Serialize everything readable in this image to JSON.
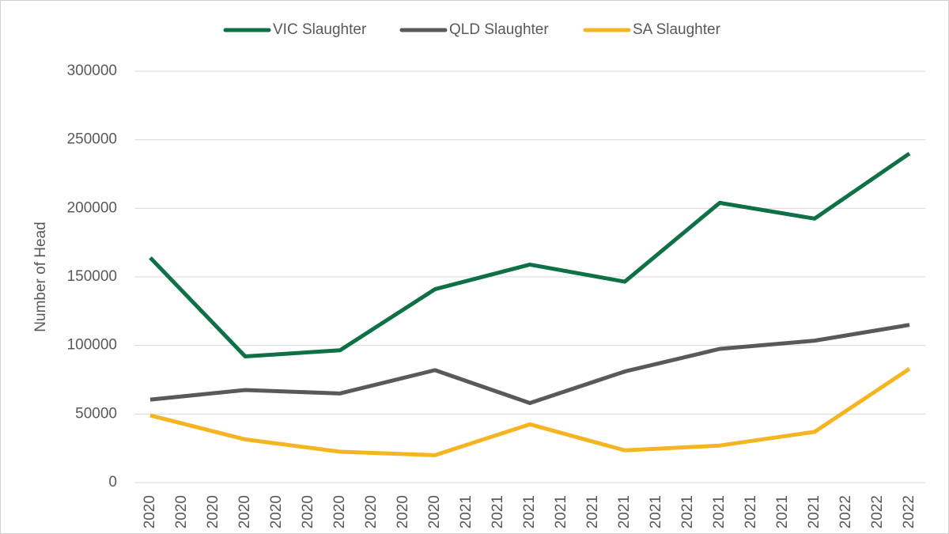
{
  "chart_data": {
    "type": "line",
    "y_label": "Number of Head",
    "xlim": [
      -0.5,
      24.5
    ],
    "xticks": [
      {
        "value": 0,
        "label": "2020"
      },
      {
        "value": 1,
        "label": "2020"
      },
      {
        "value": 2,
        "label": "2020"
      },
      {
        "value": 3,
        "label": "2020"
      },
      {
        "value": 4,
        "label": "2020"
      },
      {
        "value": 5,
        "label": "2020"
      },
      {
        "value": 6,
        "label": "2020"
      },
      {
        "value": 7,
        "label": "2020"
      },
      {
        "value": 8,
        "label": "2020"
      },
      {
        "value": 9,
        "label": "2020"
      },
      {
        "value": 10,
        "label": "2021"
      },
      {
        "value": 11,
        "label": "2021"
      },
      {
        "value": 12,
        "label": "2021"
      },
      {
        "value": 13,
        "label": "2021"
      },
      {
        "value": 14,
        "label": "2021"
      },
      {
        "value": 15,
        "label": "2021"
      },
      {
        "value": 16,
        "label": "2021"
      },
      {
        "value": 17,
        "label": "2021"
      },
      {
        "value": 18,
        "label": "2021"
      },
      {
        "value": 19,
        "label": "2021"
      },
      {
        "value": 20,
        "label": "2021"
      },
      {
        "value": 21,
        "label": "2021"
      },
      {
        "value": 22,
        "label": "2022"
      },
      {
        "value": 23,
        "label": "2022"
      },
      {
        "value": 24,
        "label": "2022"
      }
    ],
    "x": [
      0,
      3,
      6,
      9,
      12,
      15,
      18,
      21,
      24
    ],
    "ylim": [
      0,
      300000
    ],
    "yticks": [
      0,
      50000,
      100000,
      150000,
      200000,
      250000,
      300000
    ],
    "grid": true,
    "legend": "top",
    "series": [
      {
        "name": "VIC Slaughter",
        "color": "#0e7145",
        "values": [
          164000,
          92000,
          96500,
          141000,
          159000,
          146500,
          204000,
          192500,
          240000
        ]
      },
      {
        "name": "QLD Slaughter",
        "color": "#595959",
        "values": [
          60500,
          67500,
          65000,
          82000,
          58000,
          81000,
          97500,
          103500,
          115000
        ]
      },
      {
        "name": "SA Slaughter",
        "color": "#f5b520",
        "values": [
          49000,
          31500,
          22500,
          20000,
          42500,
          23500,
          27000,
          37000,
          83000
        ]
      }
    ]
  }
}
